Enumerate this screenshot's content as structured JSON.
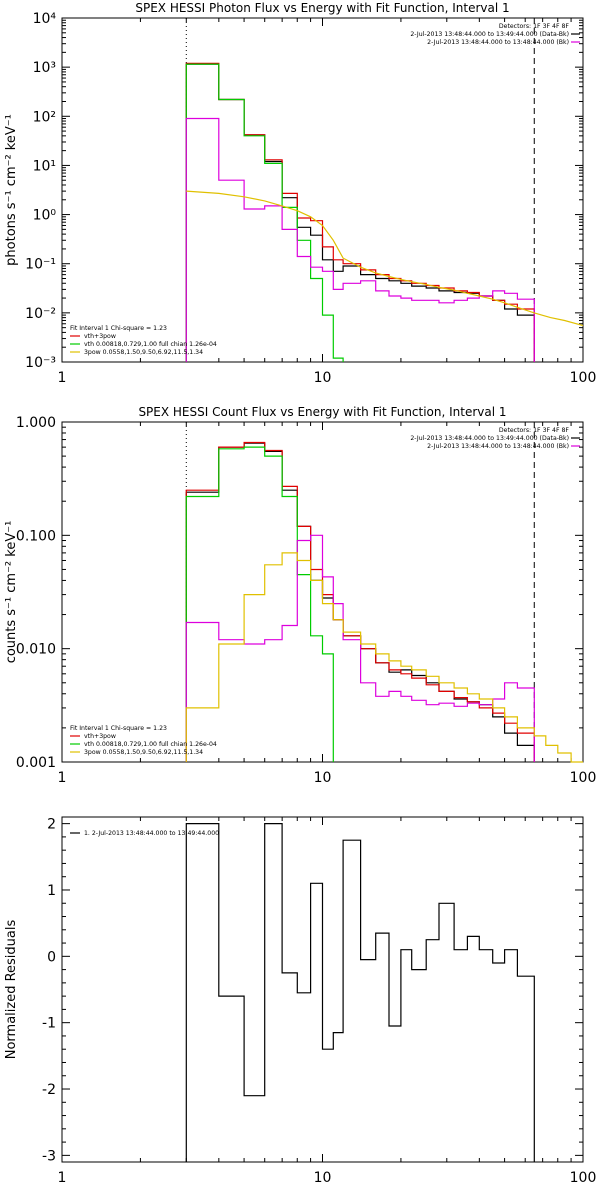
{
  "chart_data": [
    {
      "type": "line",
      "title": "SPEX HESSI Photon Flux vs Energy with Fit Function, Interval 1",
      "ylabel": "photons s⁻¹ cm⁻² keV⁻¹",
      "xlabel": "",
      "xscale": "log",
      "yscale": "log",
      "xlim": [
        1,
        100
      ],
      "ylim": [
        0.001,
        10000
      ],
      "xticks": [
        {
          "v": 1,
          "label": "1"
        },
        {
          "v": 10,
          "label": "10"
        },
        {
          "v": 100,
          "label": "100"
        }
      ],
      "yticks": [
        {
          "v": 0.001,
          "label": "10⁻³"
        },
        {
          "v": 0.01,
          "label": "10⁻²"
        },
        {
          "v": 0.1,
          "label": "10⁻¹"
        },
        {
          "v": 1,
          "label": "10⁰"
        },
        {
          "v": 10,
          "label": "10¹"
        },
        {
          "v": 100,
          "label": "10²"
        },
        {
          "v": 1000,
          "label": "10³"
        },
        {
          "v": 10000,
          "label": "10⁴"
        }
      ],
      "grid": false,
      "vlines": [
        {
          "x": 3,
          "style": "dotted"
        },
        {
          "x": 65,
          "style": "dashed"
        }
      ],
      "legend_topright": {
        "lines": [
          {
            "text": "Detectors: 1F 3F 4F 8F",
            "color": null
          },
          {
            "text": "2-Jul-2013 13:48:44.000 to 13:49:44.000 (Data-Bk)",
            "color": "#000000"
          },
          {
            "text": "2-Jul-2013 13:48:44.000 to 13:48:44.000 (Bk)",
            "color": "#dd00dd"
          }
        ]
      },
      "legend_bottomleft": {
        "lines": [
          {
            "text": "Fit Interval 1   Chi-square = 1.23",
            "color": null
          },
          {
            "text": "vth+3pow",
            "color": "#e00000"
          },
          {
            "text": "vth 0.00818,0.729,1.00  full chian 1.26e-04",
            "color": "#00cc00"
          },
          {
            "text": "3pow 0.0558,1.50,9.50,6.92,11.5,1.34",
            "color": "#e0c000"
          }
        ]
      },
      "series": [
        {
          "color": "#000000",
          "edges": [
            3,
            4,
            5,
            6,
            7,
            8,
            9,
            10,
            11,
            12,
            14,
            16,
            18,
            20,
            22,
            25,
            28,
            32,
            36,
            40,
            45,
            50,
            56,
            65
          ],
          "values": [
            1150,
            220,
            42,
            12,
            2.2,
            0.55,
            0.38,
            0.12,
            0.07,
            0.09,
            0.06,
            0.05,
            0.045,
            0.04,
            0.035,
            0.032,
            0.028,
            0.026,
            0.025,
            0.022,
            0.018,
            0.012,
            0.009
          ]
        },
        {
          "color": "#e00000",
          "edges": [
            3,
            4,
            5,
            6,
            7,
            8,
            9,
            10,
            11,
            12,
            14,
            16,
            18,
            20,
            22,
            25,
            28,
            32,
            36,
            40,
            45,
            50,
            56,
            65
          ],
          "values": [
            1200,
            220,
            42,
            13,
            2.7,
            0.85,
            0.75,
            0.22,
            0.12,
            0.1,
            0.075,
            0.06,
            0.05,
            0.045,
            0.04,
            0.036,
            0.032,
            0.028,
            0.026,
            0.022,
            0.018,
            0.015,
            0.012
          ]
        },
        {
          "color": "#00cc00",
          "edges": [
            3,
            4,
            5,
            6,
            7,
            8,
            9,
            10,
            11,
            12
          ],
          "values": [
            1150,
            220,
            40,
            11,
            1.4,
            0.3,
            0.05,
            0.009,
            0.0012
          ]
        },
        {
          "color": "#dd00dd",
          "edges": [
            3,
            4,
            5,
            6,
            7,
            8,
            9,
            10,
            11,
            12,
            14,
            16,
            18,
            20,
            22,
            25,
            28,
            32,
            36,
            40,
            45,
            50,
            56,
            65
          ],
          "values": [
            90,
            5,
            1.3,
            1.5,
            0.5,
            0.14,
            0.085,
            0.07,
            0.03,
            0.04,
            0.045,
            0.028,
            0.022,
            0.02,
            0.018,
            0.018,
            0.016,
            0.018,
            0.02,
            0.022,
            0.028,
            0.025,
            0.019
          ]
        },
        {
          "color": "#e0c000",
          "smooth": true,
          "x": [
            3,
            4,
            5,
            6,
            7,
            8,
            9,
            10,
            11,
            12,
            14,
            16,
            18,
            20,
            22,
            25,
            28,
            32,
            36,
            40,
            45,
            50,
            56,
            65,
            75,
            85,
            100
          ],
          "y": [
            3.0,
            2.7,
            2.3,
            1.9,
            1.5,
            1.2,
            0.9,
            0.6,
            0.3,
            0.13,
            0.085,
            0.065,
            0.055,
            0.048,
            0.043,
            0.038,
            0.033,
            0.029,
            0.025,
            0.022,
            0.019,
            0.016,
            0.013,
            0.01,
            0.008,
            0.007,
            0.0055
          ]
        }
      ]
    },
    {
      "type": "line",
      "title": "SPEX HESSI Count Flux vs Energy with Fit Function, Interval 1",
      "ylabel": "counts s⁻¹ cm⁻² keV⁻¹",
      "xlabel": "",
      "xscale": "log",
      "yscale": "log",
      "xlim": [
        1,
        100
      ],
      "ylim": [
        0.001,
        1.0
      ],
      "xticks": [
        {
          "v": 1,
          "label": "1"
        },
        {
          "v": 10,
          "label": "10"
        },
        {
          "v": 100,
          "label": "100"
        }
      ],
      "yticks": [
        {
          "v": 0.001,
          "label": "0.001"
        },
        {
          "v": 0.01,
          "label": "0.010"
        },
        {
          "v": 0.1,
          "label": "0.100"
        },
        {
          "v": 1.0,
          "label": "1.000"
        }
      ],
      "grid": false,
      "vlines": [
        {
          "x": 3,
          "style": "dotted"
        },
        {
          "x": 65,
          "style": "dashed"
        }
      ],
      "legend_topright": {
        "lines": [
          {
            "text": "Detectors: 1F 3F 4F 8F",
            "color": null
          },
          {
            "text": "2-Jul-2013 13:48:44.000 to 13:49:44.000 (Data-Bk)",
            "color": "#000000"
          },
          {
            "text": "2-Jul-2013 13:48:44.000 to 13:48:44.000 (Bk)",
            "color": "#dd00dd"
          }
        ]
      },
      "legend_bottomleft": {
        "lines": [
          {
            "text": "Fit Interval 1   Chi-square = 1.23",
            "color": null
          },
          {
            "text": "vth+3pow",
            "color": "#e00000"
          },
          {
            "text": "vth 0.00818,0.729,1.00  full chian 1.26e-04",
            "color": "#00cc00"
          },
          {
            "text": "3pow 0.0558,1.50,9.50,6.92,11.5,1.34",
            "color": "#e0c000"
          }
        ]
      },
      "series": [
        {
          "color": "#000000",
          "edges": [
            3,
            4,
            5,
            6,
            7,
            8,
            9,
            10,
            11,
            12,
            14,
            16,
            18,
            20,
            22,
            25,
            28,
            32,
            36,
            40,
            45,
            50,
            56,
            65
          ],
          "values": [
            0.24,
            0.6,
            0.65,
            0.55,
            0.25,
            0.12,
            0.04,
            0.028,
            0.018,
            0.013,
            0.01,
            0.0075,
            0.0062,
            0.0065,
            0.0058,
            0.005,
            0.0042,
            0.0036,
            0.0034,
            0.0032,
            0.0025,
            0.0018,
            0.0014
          ]
        },
        {
          "color": "#e00000",
          "edges": [
            3,
            4,
            5,
            6,
            7,
            8,
            9,
            10,
            11,
            12,
            14,
            16,
            18,
            20,
            22,
            25,
            28,
            32,
            36,
            40,
            45,
            50,
            56,
            65
          ],
          "values": [
            0.25,
            0.6,
            0.66,
            0.56,
            0.27,
            0.12,
            0.05,
            0.03,
            0.018,
            0.013,
            0.01,
            0.0075,
            0.0065,
            0.006,
            0.0055,
            0.0048,
            0.0042,
            0.0037,
            0.0034,
            0.003,
            0.0027,
            0.0022,
            0.0018
          ]
        },
        {
          "color": "#00cc00",
          "edges": [
            3,
            4,
            5,
            6,
            7,
            8,
            9,
            10,
            11
          ],
          "values": [
            0.22,
            0.58,
            0.6,
            0.5,
            0.22,
            0.045,
            0.013,
            0.009
          ]
        },
        {
          "color": "#dd00dd",
          "edges": [
            3,
            4,
            5,
            6,
            7,
            8,
            9,
            10,
            11,
            12,
            14,
            16,
            18,
            20,
            22,
            25,
            28,
            32,
            36,
            40,
            45,
            50,
            56,
            65
          ],
          "values": [
            0.017,
            0.012,
            0.011,
            0.012,
            0.016,
            0.09,
            0.1,
            0.043,
            0.025,
            0.012,
            0.005,
            0.0038,
            0.0042,
            0.0038,
            0.0035,
            0.0032,
            0.0033,
            0.0031,
            0.0033,
            0.0032,
            0.0036,
            0.005,
            0.0045
          ]
        },
        {
          "color": "#e0c000",
          "edges": [
            3,
            4,
            5,
            6,
            7,
            8,
            9,
            10,
            11,
            12,
            14,
            16,
            18,
            20,
            22,
            25,
            28,
            32,
            36,
            40,
            45,
            50,
            56,
            65,
            72,
            80,
            90,
            100
          ],
          "values": [
            0.003,
            0.011,
            0.03,
            0.055,
            0.07,
            0.06,
            0.04,
            0.025,
            0.018,
            0.014,
            0.011,
            0.009,
            0.0078,
            0.007,
            0.0065,
            0.0057,
            0.005,
            0.0045,
            0.004,
            0.0036,
            0.003,
            0.0025,
            0.002,
            0.0017,
            0.0014,
            0.0012,
            0.001
          ]
        }
      ]
    },
    {
      "type": "line",
      "title": "",
      "ylabel": "Normalized Residuals",
      "xlabel": "",
      "xscale": "log",
      "yscale": "linear",
      "xlim": [
        1,
        100
      ],
      "ylim": [
        -3.1,
        2.1
      ],
      "xticks": [
        {
          "v": 1,
          "label": "1"
        },
        {
          "v": 10,
          "label": "10"
        },
        {
          "v": 100,
          "label": "100"
        }
      ],
      "yticks": [
        {
          "v": -3,
          "label": "-3"
        },
        {
          "v": -2,
          "label": "-2"
        },
        {
          "v": -1,
          "label": "-1"
        },
        {
          "v": 0,
          "label": "0"
        },
        {
          "v": 1,
          "label": "1"
        },
        {
          "v": 2,
          "label": "2"
        }
      ],
      "grid": false,
      "vlines": [],
      "legend_topright": null,
      "legend_topleft": {
        "lines": [
          {
            "text": "1.  2-Jul-2013 13:48:44.000 to 13:49:44.000",
            "color": "#000000"
          }
        ]
      },
      "legend_bottomleft": null,
      "series": [
        {
          "color": "#000000",
          "close_to": -3.1,
          "edges": [
            3,
            4,
            5,
            6,
            7,
            8,
            9,
            10,
            11,
            12,
            14,
            16,
            18,
            20,
            22,
            25,
            28,
            32,
            36,
            40,
            45,
            50,
            56,
            65
          ],
          "values": [
            2.0,
            -0.6,
            -2.1,
            2.0,
            -0.25,
            -0.55,
            1.1,
            -1.4,
            -1.15,
            1.75,
            -0.05,
            0.35,
            -1.05,
            0.1,
            -0.2,
            0.25,
            0.8,
            0.1,
            0.3,
            0.1,
            -0.1,
            0.1,
            -0.3
          ]
        }
      ]
    }
  ]
}
